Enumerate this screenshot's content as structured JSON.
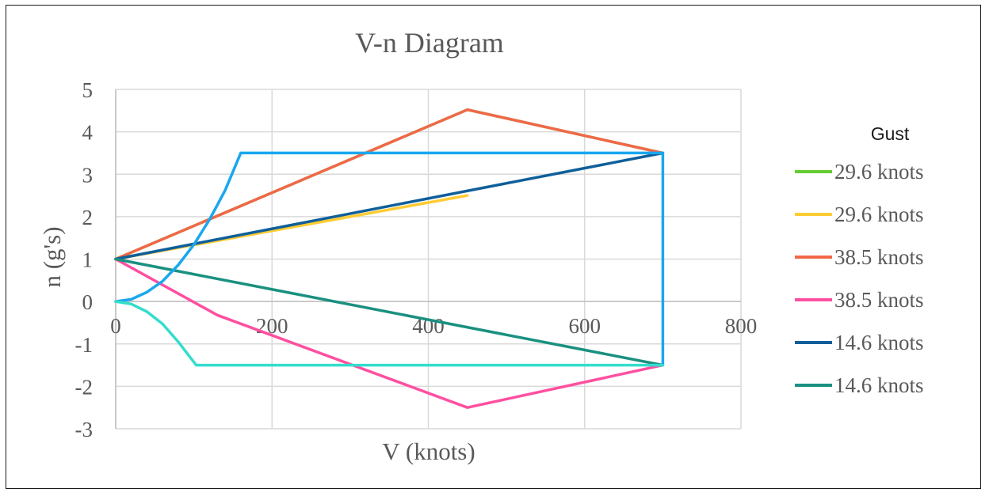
{
  "chart_data": {
    "type": "line",
    "title": "V-n Diagram",
    "xlabel": "V (knots)",
    "ylabel": "n (g's)",
    "xlim": [
      0,
      800
    ],
    "ylim": [
      -3,
      5
    ],
    "x_ticks": [
      0,
      200,
      400,
      600,
      800
    ],
    "y_ticks": [
      5,
      4,
      3,
      2,
      1,
      0,
      -1,
      -2,
      -3
    ],
    "grid": "vertical and horizontal",
    "legend": {
      "title": "Gust",
      "position": "right"
    },
    "series": [
      {
        "name": "29.6 knots",
        "color": "#66cc33",
        "legend": true,
        "points": [
          [
            0,
            1
          ],
          [
            450,
            4.52
          ],
          [
            700,
            3.5
          ]
        ]
      },
      {
        "name": "29.6 knots",
        "color": "#ffcc33",
        "legend": true,
        "points": [
          [
            0,
            1
          ],
          [
            450,
            2.5
          ]
        ]
      },
      {
        "name": "38.5 knots",
        "color": "#f06848",
        "legend": true,
        "points": [
          [
            0,
            1
          ],
          [
            450,
            4.52
          ],
          [
            700,
            3.5
          ]
        ]
      },
      {
        "name": "38.5 knots",
        "color": "#ff4fa0",
        "legend": true,
        "points": [
          [
            0,
            1
          ],
          [
            130,
            -0.32
          ],
          [
            450,
            -2.5
          ],
          [
            700,
            -1.5
          ]
        ]
      },
      {
        "name": "14.6 knots",
        "color": "#0f5f9a",
        "legend": true,
        "points": [
          [
            0,
            1
          ],
          [
            700,
            3.5
          ]
        ]
      },
      {
        "name": "14.6 knots",
        "color": "#1a9080",
        "legend": true,
        "points": [
          [
            0,
            1
          ],
          [
            700,
            -1.5
          ]
        ]
      },
      {
        "color": "#1aa7ee",
        "legend": false,
        "points": [
          [
            0,
            0
          ],
          [
            20,
            0.05
          ],
          [
            40,
            0.22
          ],
          [
            60,
            0.48
          ],
          [
            80,
            0.86
          ],
          [
            100,
            1.34
          ],
          [
            120,
            1.93
          ],
          [
            140,
            2.62
          ],
          [
            160,
            3.5
          ],
          [
            700,
            3.5
          ],
          [
            700,
            -1.5
          ]
        ]
      },
      {
        "color": "#33ddcc",
        "legend": false,
        "points": [
          [
            0,
            0
          ],
          [
            20,
            -0.06
          ],
          [
            40,
            -0.24
          ],
          [
            60,
            -0.53
          ],
          [
            80,
            -0.95
          ],
          [
            103,
            -1.5
          ],
          [
            700,
            -1.5
          ]
        ]
      }
    ]
  }
}
